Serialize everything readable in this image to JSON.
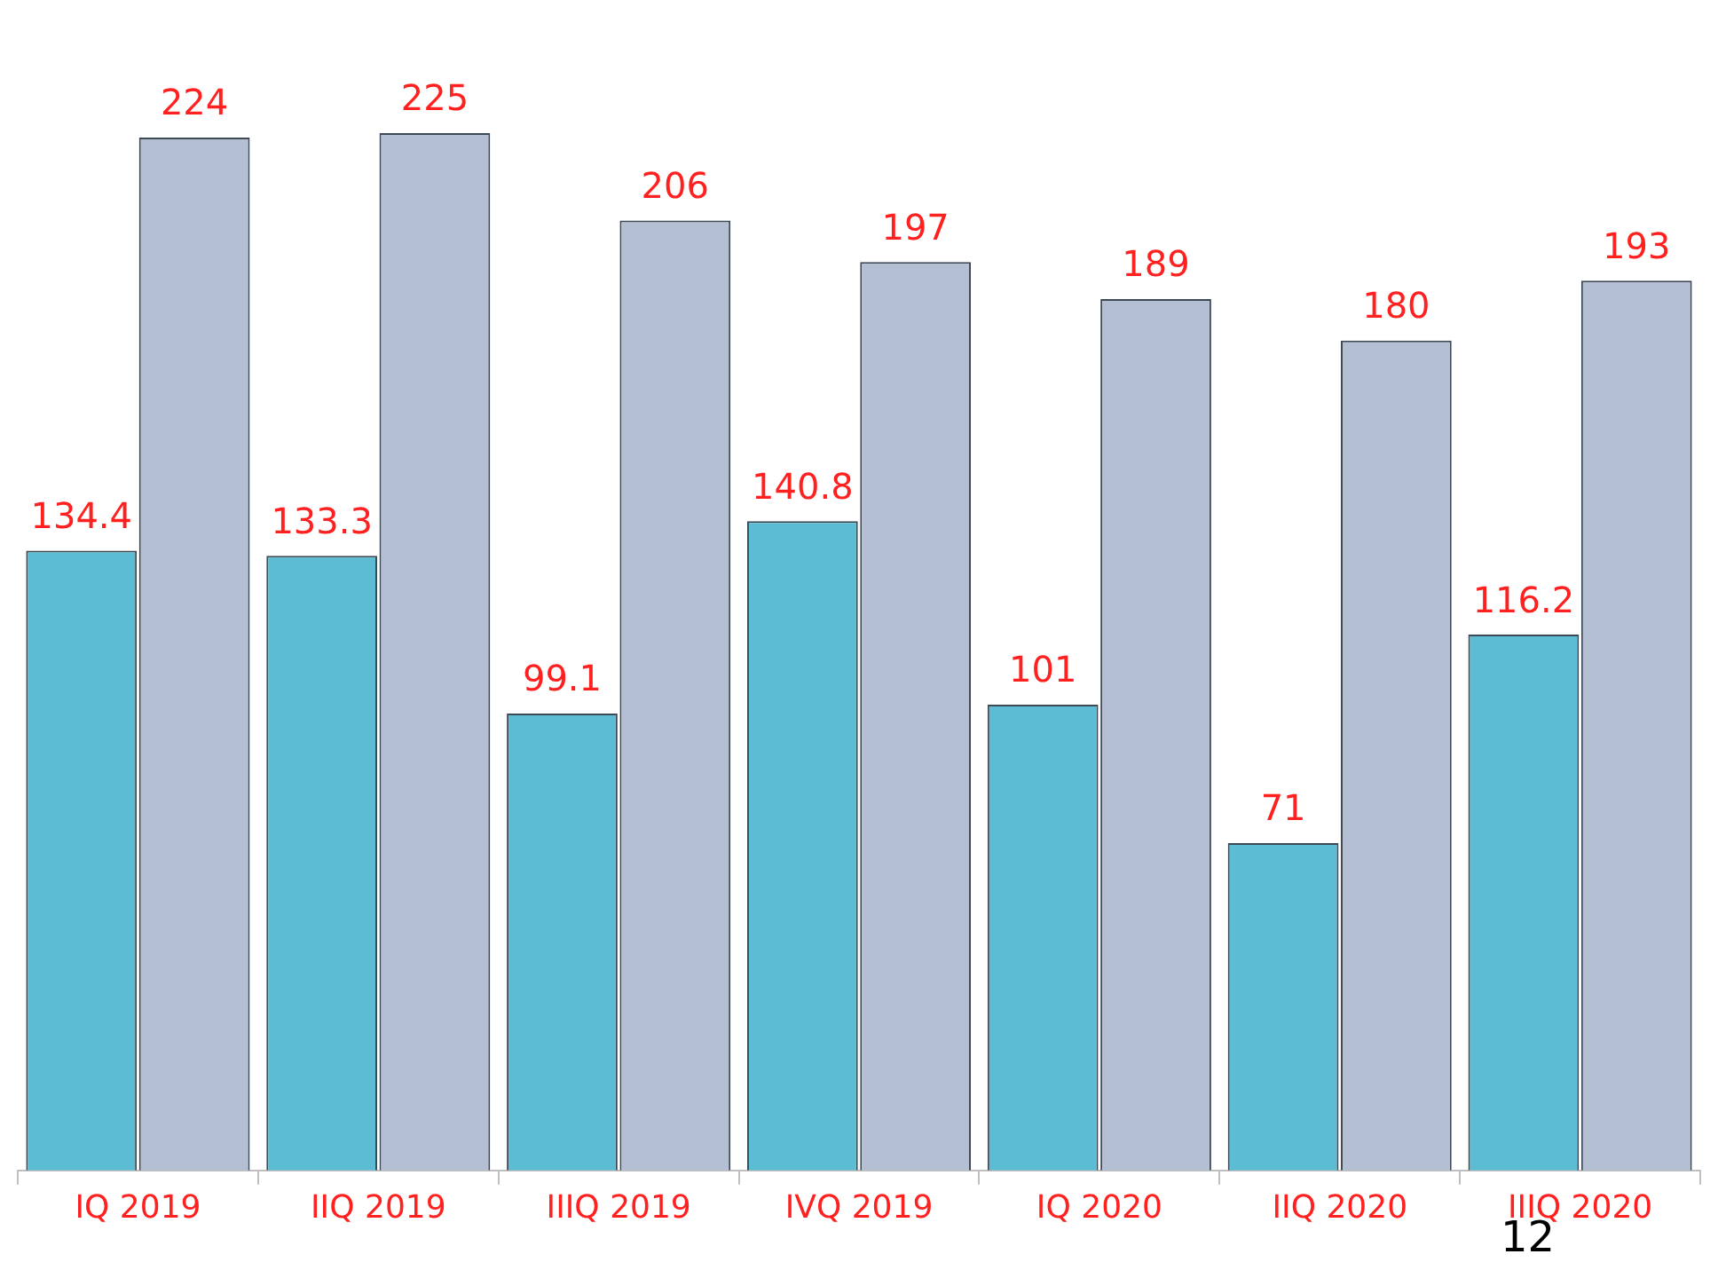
{
  "chart_data": {
    "type": "bar",
    "categories": [
      "IQ 2019",
      "IIQ 2019",
      "IIIQ 2019",
      "IVQ 2019",
      "IQ 2020",
      "IIQ 2020",
      "IIIQ 2020"
    ],
    "series": [
      {
        "color": "#5bbcd3",
        "values": [
          134.4,
          133.3,
          99.1,
          140.8,
          101,
          71,
          116.2
        ]
      },
      {
        "color": "#b4bfd4",
        "values": [
          224,
          225,
          206,
          197,
          189,
          180,
          193
        ]
      }
    ],
    "data_labels": true,
    "grid": false,
    "legend": false,
    "tick_labels": "x",
    "annotations": [
      "12"
    ]
  }
}
